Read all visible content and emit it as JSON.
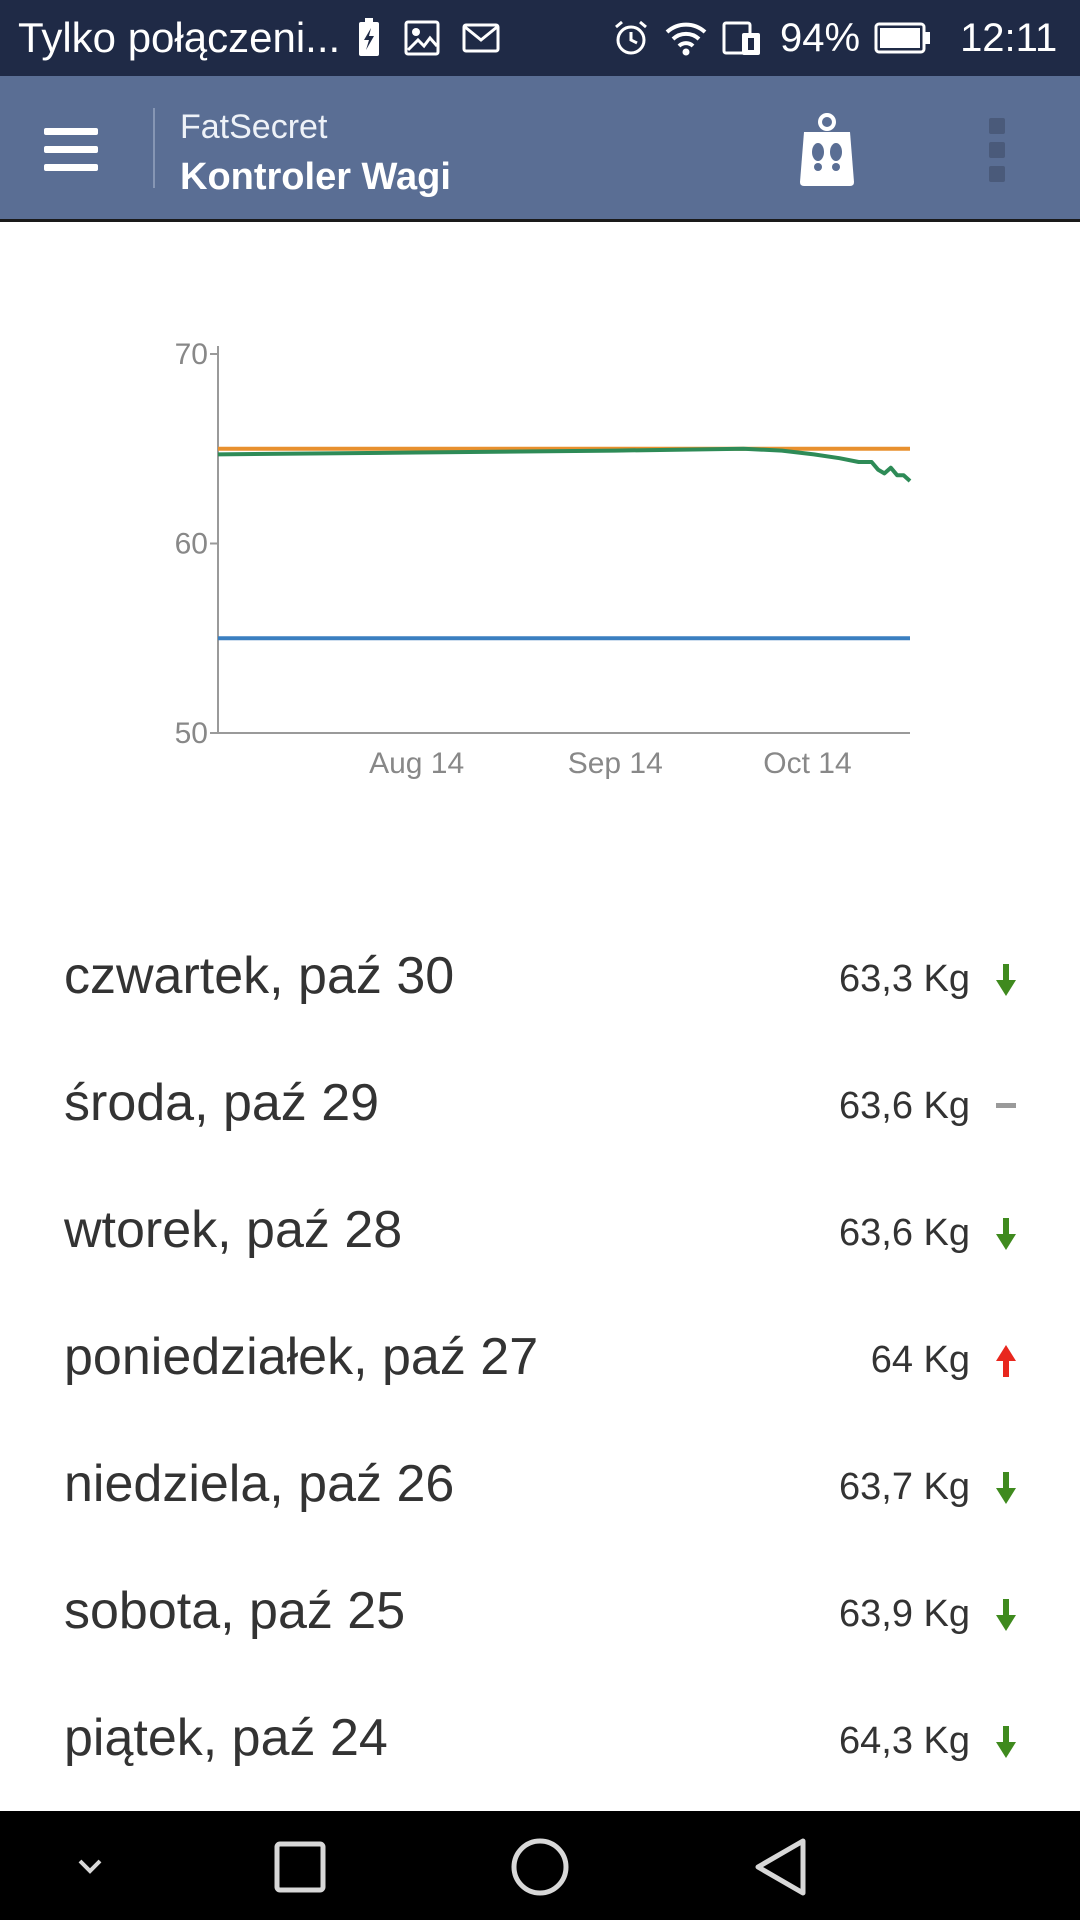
{
  "status_bar": {
    "notification_text": "Tylko połączeni...",
    "battery_percent": "94%",
    "time": "12:11"
  },
  "app_bar": {
    "subtitle": "FatSecret",
    "title": "Kontroler Wagi"
  },
  "chart_data": {
    "type": "line",
    "y_ticks": [
      "70",
      "60",
      "50"
    ],
    "x_ticks": [
      "Aug 14",
      "Sep 14",
      "Oct 14"
    ],
    "ylim": [
      50,
      70
    ],
    "grid": false,
    "series": [
      {
        "color": "#e8902e",
        "x": [
          "2014-07-14",
          "2014-10-30"
        ],
        "values": [
          65,
          65
        ]
      },
      {
        "color": "#3a7fc0",
        "x": [
          "2014-07-14",
          "2014-10-30"
        ],
        "values": [
          55,
          55
        ]
      },
      {
        "color": "#2e8b57",
        "x": [
          "2014-07-14",
          "2014-08-14",
          "2014-09-14",
          "2014-10-04",
          "2014-10-10",
          "2014-10-15",
          "2014-10-19",
          "2014-10-22",
          "2014-10-24",
          "2014-10-25",
          "2014-10-26",
          "2014-10-27",
          "2014-10-28",
          "2014-10-29",
          "2014-10-30"
        ],
        "values": [
          64.7,
          64.8,
          64.9,
          65.0,
          64.9,
          64.7,
          64.5,
          64.3,
          64.3,
          63.9,
          63.7,
          64.0,
          63.6,
          63.6,
          63.3
        ]
      }
    ]
  },
  "entries": [
    {
      "day": "czwartek, paź 30",
      "weight": "63,3 Kg",
      "trend": "down",
      "trend_color": "#3f8a1e"
    },
    {
      "day": "środa, paź 29",
      "weight": "63,6 Kg",
      "trend": "same",
      "trend_color": "#9a9a9a"
    },
    {
      "day": "wtorek, paź 28",
      "weight": "63,6 Kg",
      "trend": "down",
      "trend_color": "#3f8a1e"
    },
    {
      "day": "poniedziałek, paź 27",
      "weight": "64 Kg",
      "trend": "up",
      "trend_color": "#e8271e"
    },
    {
      "day": "niedziela, paź 26",
      "weight": "63,7 Kg",
      "trend": "down",
      "trend_color": "#3f8a1e"
    },
    {
      "day": "sobota, paź 25",
      "weight": "63,9 Kg",
      "trend": "down",
      "trend_color": "#3f8a1e"
    },
    {
      "day": "piątek, paź 24",
      "weight": "64,3 Kg",
      "trend": "down",
      "trend_color": "#3f8a1e"
    }
  ],
  "icons": {
    "status": [
      "battery-charging-icon",
      "image-icon",
      "mail-icon",
      "alarm-icon",
      "wifi-icon",
      "sim-icon",
      "battery-icon"
    ],
    "app_bar": [
      "menu-icon",
      "scale-icon",
      "overflow-menu-icon"
    ],
    "nav": [
      "chevron-down-icon",
      "recents-icon",
      "home-icon",
      "back-icon"
    ]
  }
}
